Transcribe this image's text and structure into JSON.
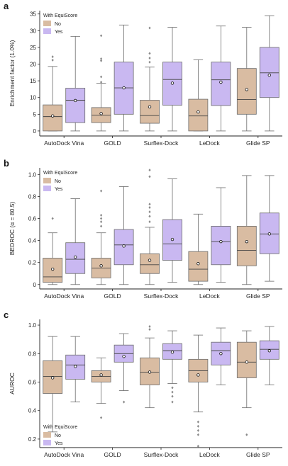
{
  "colors": {
    "no": "#d9bca2",
    "yes": "#c9b8f1",
    "box_stroke": "#6b6b6b",
    "median": "#444444",
    "mean_fill": "#ffffff",
    "axis": "#222222"
  },
  "chart_data": [
    {
      "panel_label": "a",
      "type": "box",
      "title": "",
      "ylabel": "Enrichment factor (1.0%)",
      "ylim": [
        -1.5,
        36
      ],
      "yticks": [
        0,
        5,
        10,
        15,
        20,
        25,
        30,
        35
      ],
      "legend": {
        "title": "With EquiScore",
        "entries": [
          "No",
          "Yes"
        ],
        "placement": "top-left"
      },
      "categories": [
        "AutoDock Vina",
        "GOLD",
        "Surflex-Dock",
        "LeDock",
        "Glide SP"
      ],
      "series": [
        {
          "name": "No",
          "boxes": [
            {
              "whisker_low": 0,
              "q1": 0,
              "median": 4.3,
              "q3": 7.8,
              "whisker_high": 19.3,
              "mean": 4.5,
              "outliers": [
                21.2,
                22.2
              ]
            },
            {
              "whisker_low": 0,
              "q1": 2.5,
              "median": 4.7,
              "q3": 7.0,
              "whisker_high": 14.3,
              "mean": 5.2,
              "outliers": [
                14.6,
                16.2,
                21.0,
                21.6,
                28.5
              ]
            },
            {
              "whisker_low": 0,
              "q1": 2.3,
              "median": 4.6,
              "q3": 9.2,
              "whisker_high": 19.1,
              "mean": 7.2,
              "outliers": [
                20.6,
                21.8,
                23.2,
                30.8
              ]
            },
            {
              "whisker_low": 0,
              "q1": 0,
              "median": 4.5,
              "q3": 9.5,
              "whisker_high": 21.3,
              "mean": 5.7,
              "outliers": []
            },
            {
              "whisker_low": 0,
              "q1": 5.0,
              "median": 9.4,
              "q3": 18.7,
              "whisker_high": 31.0,
              "mean": 12.4,
              "outliers": []
            }
          ]
        },
        {
          "name": "Yes",
          "boxes": [
            {
              "whisker_low": 0,
              "q1": 2.5,
              "median": 9.2,
              "q3": 12.8,
              "whisker_high": 28.3,
              "mean": 9.1,
              "outliers": []
            },
            {
              "whisker_low": 0,
              "q1": 5.0,
              "median": 12.9,
              "q3": 20.6,
              "whisker_high": 31.7,
              "mean": 12.9,
              "outliers": []
            },
            {
              "whisker_low": 0,
              "q1": 7.7,
              "median": 15.4,
              "q3": 20.6,
              "whisker_high": 31.0,
              "mean": 14.3,
              "outliers": []
            },
            {
              "whisker_low": 0,
              "q1": 7.6,
              "median": 15.3,
              "q3": 20.6,
              "whisker_high": 31.4,
              "mean": 14.6,
              "outliers": []
            },
            {
              "whisker_low": 0,
              "q1": 10.0,
              "median": 17.4,
              "q3": 25.0,
              "whisker_high": 34.5,
              "mean": 16.7,
              "outliers": []
            }
          ]
        }
      ]
    },
    {
      "panel_label": "b",
      "type": "box",
      "title": "",
      "ylabel": "BEDROC (α = 80.5)",
      "ylim": [
        -0.04,
        1.06
      ],
      "yticks": [
        0,
        0.2,
        0.4,
        0.6,
        0.8,
        1.0
      ],
      "ytick_labels": [
        "0",
        "0.2",
        "0.4",
        "0.6",
        "0.8",
        "1.0"
      ],
      "legend": {
        "title": "With EquiScore",
        "entries": [
          "No",
          "Yes"
        ],
        "placement": "top-left"
      },
      "categories": [
        "AutoDock Vina",
        "GOLD",
        "Surflex-Dock",
        "LeDock",
        "Glide SP"
      ],
      "series": [
        {
          "name": "No",
          "boxes": [
            {
              "whisker_low": 0,
              "q1": 0.02,
              "median": 0.07,
              "q3": 0.24,
              "whisker_high": 0.47,
              "mean": 0.14,
              "outliers": [
                0.6
              ]
            },
            {
              "whisker_low": 0,
              "q1": 0.06,
              "median": 0.15,
              "q3": 0.24,
              "whisker_high": 0.47,
              "mean": 0.17,
              "outliers": [
                0.53,
                0.57,
                0.6,
                0.63,
                0.85
              ]
            },
            {
              "whisker_low": 0,
              "q1": 0.1,
              "median": 0.18,
              "q3": 0.28,
              "whisker_high": 0.52,
              "mean": 0.22,
              "outliers": [
                0.57,
                0.62,
                0.66,
                0.7,
                0.73,
                0.98,
                1.04
              ]
            },
            {
              "whisker_low": 0,
              "q1": 0.03,
              "median": 0.14,
              "q3": 0.3,
              "whisker_high": 0.64,
              "mean": 0.19,
              "outliers": []
            },
            {
              "whisker_low": 0,
              "q1": 0.17,
              "median": 0.31,
              "q3": 0.53,
              "whisker_high": 0.99,
              "mean": 0.39,
              "outliers": []
            }
          ]
        },
        {
          "name": "Yes",
          "boxes": [
            {
              "whisker_low": 0,
              "q1": 0.1,
              "median": 0.23,
              "q3": 0.38,
              "whisker_high": 0.78,
              "mean": 0.25,
              "outliers": []
            },
            {
              "whisker_low": 0,
              "q1": 0.18,
              "median": 0.36,
              "q3": 0.5,
              "whisker_high": 0.89,
              "mean": 0.35,
              "outliers": []
            },
            {
              "whisker_low": 0.02,
              "q1": 0.22,
              "median": 0.37,
              "q3": 0.59,
              "whisker_high": 0.96,
              "mean": 0.41,
              "outliers": []
            },
            {
              "whisker_low": 0.02,
              "q1": 0.18,
              "median": 0.39,
              "q3": 0.53,
              "whisker_high": 0.88,
              "mean": 0.39,
              "outliers": []
            },
            {
              "whisker_low": 0.03,
              "q1": 0.28,
              "median": 0.46,
              "q3": 0.65,
              "whisker_high": 0.99,
              "mean": 0.46,
              "outliers": []
            }
          ]
        }
      ]
    },
    {
      "panel_label": "c",
      "type": "box",
      "title": "",
      "ylabel": "AUROC",
      "ylim": [
        0.14,
        1.04
      ],
      "yticks": [
        0.2,
        0.4,
        0.6,
        0.8,
        1.0
      ],
      "ytick_labels": [
        "0.2",
        "0.4",
        "0.6",
        "0.8",
        "1.0"
      ],
      "legend": {
        "title": "With EquiScore",
        "entries": [
          "No",
          "Yes"
        ],
        "placement": "bottom-left"
      },
      "categories": [
        "AutoDock Vina",
        "GOLD",
        "Surflex-Dock",
        "LeDock",
        "Glide SP"
      ],
      "series": [
        {
          "name": "No",
          "boxes": [
            {
              "whisker_low": 0.25,
              "q1": 0.52,
              "median": 0.64,
              "q3": 0.75,
              "whisker_high": 0.92,
              "mean": 0.63,
              "outliers": []
            },
            {
              "whisker_low": 0.45,
              "q1": 0.6,
              "median": 0.64,
              "q3": 0.68,
              "whisker_high": 0.77,
              "mean": 0.65,
              "outliers": [
                0.35
              ]
            },
            {
              "whisker_low": 0.42,
              "q1": 0.58,
              "median": 0.67,
              "q3": 0.77,
              "whisker_high": 0.91,
              "mean": 0.67,
              "outliers": [
                0.97,
                0.99
              ]
            },
            {
              "whisker_low": 0.39,
              "q1": 0.6,
              "median": 0.68,
              "q3": 0.76,
              "whisker_high": 0.93,
              "mean": 0.65,
              "outliers": [
                0.15,
                0.23,
                0.26,
                0.29,
                0.32
              ]
            },
            {
              "whisker_low": 0.42,
              "q1": 0.63,
              "median": 0.74,
              "q3": 0.88,
              "whisker_high": 0.96,
              "mean": 0.74,
              "outliers": [
                0.23
              ]
            }
          ]
        },
        {
          "name": "Yes",
          "boxes": [
            {
              "whisker_low": 0.46,
              "q1": 0.62,
              "median": 0.72,
              "q3": 0.79,
              "whisker_high": 0.92,
              "mean": 0.71,
              "outliers": []
            },
            {
              "whisker_low": 0.54,
              "q1": 0.74,
              "median": 0.8,
              "q3": 0.86,
              "whisker_high": 0.94,
              "mean": 0.78,
              "outliers": [
                0.46
              ]
            },
            {
              "whisker_low": 0.59,
              "q1": 0.76,
              "median": 0.82,
              "q3": 0.87,
              "whisker_high": 0.96,
              "mean": 0.81,
              "outliers": [
                0.46,
                0.5,
                0.53,
                0.56
              ]
            },
            {
              "whisker_low": 0.58,
              "q1": 0.72,
              "median": 0.82,
              "q3": 0.88,
              "whisker_high": 0.98,
              "mean": 0.8,
              "outliers": []
            },
            {
              "whisker_low": 0.58,
              "q1": 0.76,
              "median": 0.83,
              "q3": 0.89,
              "whisker_high": 0.99,
              "mean": 0.82,
              "outliers": []
            }
          ]
        }
      ]
    }
  ]
}
